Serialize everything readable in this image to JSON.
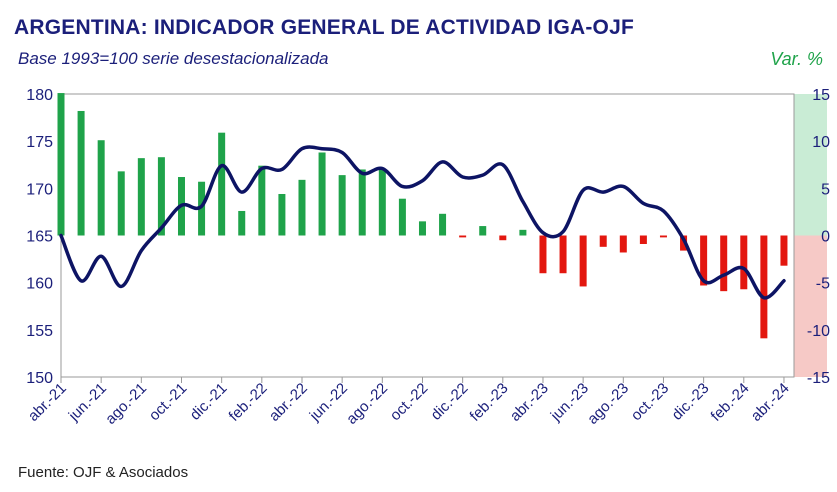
{
  "title": "ARGENTINA: INDICADOR GENERAL DE ACTIVIDAD IGA-OJF",
  "subtitle": "Base 1993=100 serie desestacionalizada",
  "right_axis_title": "Var. %",
  "source": "Fuente: OJF & Asociados",
  "colors": {
    "positive": "#1fa34a",
    "negative": "#e3170f",
    "line": "#0d1464",
    "pos_band": "#c9ecd5",
    "neg_band": "#f6c9c6",
    "text": "#1b1f7a"
  },
  "chart_data": {
    "type": "bar+line",
    "months": [
      "abr.-21",
      "may.-21",
      "jun.-21",
      "jul.-21",
      "ago.-21",
      "sep.-21",
      "oct.-21",
      "nov.-21",
      "dic.-21",
      "ene.-22",
      "feb.-22",
      "mar.-22",
      "abr.-22",
      "may.-22",
      "jun.-22",
      "jul.-22",
      "ago.-22",
      "sep.-22",
      "oct.-22",
      "nov.-22",
      "dic.-22",
      "ene.-23",
      "feb.-23",
      "mar.-23",
      "abr.-23",
      "may.-23",
      "jun.-23",
      "jul.-23",
      "ago.-23",
      "sep.-23",
      "oct.-23",
      "nov.-23",
      "dic.-23",
      "ene.-24",
      "feb.-24",
      "mar.-24",
      "abr.-24"
    ],
    "x_tick_labels": [
      "abr.-21",
      "jun.-21",
      "ago.-21",
      "oct.-21",
      "dic.-21",
      "feb.-22",
      "abr.-22",
      "jun.-22",
      "ago.-22",
      "oct.-22",
      "dic.-22",
      "feb.-23",
      "abr.-23",
      "jun.-23",
      "ago.-23",
      "oct.-23",
      "dic.-23",
      "feb.-24",
      "abr.-24"
    ],
    "bar_axis": "right",
    "bar_values": [
      15.1,
      13.2,
      10.1,
      6.8,
      8.2,
      8.3,
      6.2,
      5.7,
      10.9,
      2.6,
      7.4,
      4.4,
      5.9,
      8.8,
      6.4,
      7.0,
      7.0,
      3.9,
      1.5,
      2.3,
      -0.2,
      1.0,
      -0.5,
      0.6,
      -4.0,
      -4.0,
      -5.4,
      -1.2,
      -1.8,
      -0.9,
      -0.2,
      -1.6,
      -5.3,
      -5.9,
      -5.7,
      -10.9,
      -3.2
    ],
    "line_axis": "left",
    "line_values": [
      165.0,
      160.2,
      162.8,
      159.6,
      163.4,
      165.8,
      168.2,
      168.1,
      172.4,
      169.6,
      172.1,
      172.0,
      174.2,
      174.2,
      173.8,
      171.6,
      172.1,
      170.2,
      170.8,
      172.8,
      171.2,
      171.4,
      172.5,
      168.6,
      165.3,
      165.4,
      169.8,
      169.6,
      170.2,
      168.4,
      167.6,
      164.6,
      160.2,
      160.8,
      161.5,
      158.4,
      160.2
    ],
    "ylim_left": [
      150,
      180
    ],
    "yticks_left": [
      150,
      155,
      160,
      165,
      170,
      175,
      180
    ],
    "ylim_right": [
      -15,
      15
    ],
    "yticks_right": [
      -15,
      -10,
      -5,
      0,
      5,
      10,
      15
    ]
  }
}
